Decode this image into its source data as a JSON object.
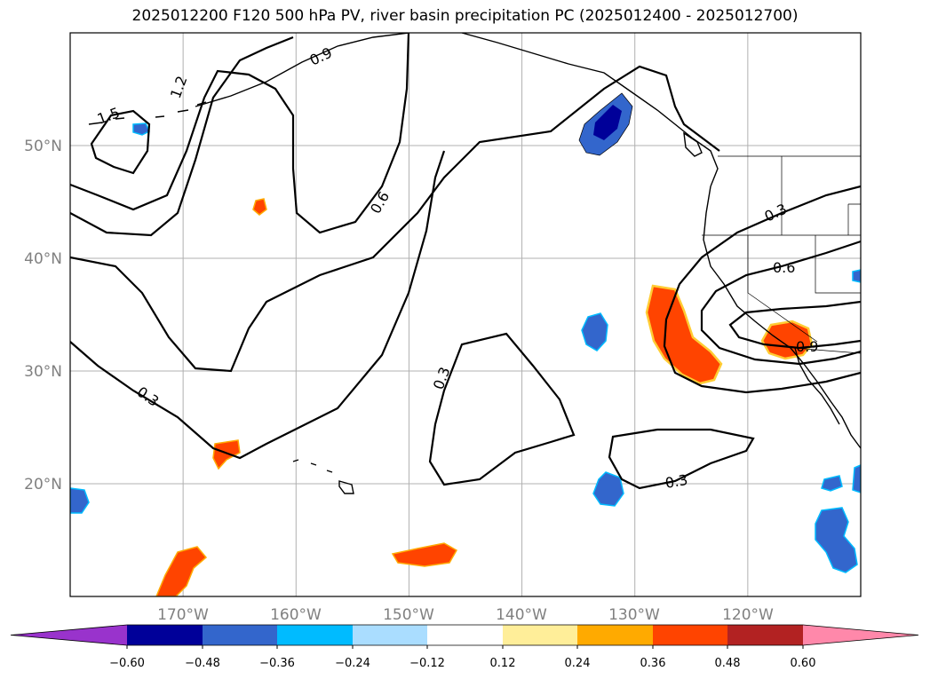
{
  "title": "2025012200 F120 500 hPa PV, river basin precipitation PC (2025012400 - 2025012700)",
  "map": {
    "lon_range": [
      -180,
      -110
    ],
    "lat_range": [
      10,
      60
    ],
    "lon_ticks": [
      {
        "value": -170,
        "label": "170°W"
      },
      {
        "value": -160,
        "label": "160°W"
      },
      {
        "value": -150,
        "label": "150°W"
      },
      {
        "value": -140,
        "label": "140°W"
      },
      {
        "value": -130,
        "label": "130°W"
      },
      {
        "value": -120,
        "label": "120°W"
      }
    ],
    "lat_ticks": [
      {
        "value": 50,
        "label": "50°N"
      },
      {
        "value": 40,
        "label": "40°N"
      },
      {
        "value": 30,
        "label": "30°N"
      },
      {
        "value": 20,
        "label": "20°N"
      }
    ],
    "grid": true,
    "contour_labels": [
      "1.5",
      "1.2",
      "0.9",
      "0.6",
      "0.3",
      "0.3",
      "0.3",
      "0.3",
      "0.6",
      "0.9"
    ]
  },
  "colorbar": {
    "ticks": [
      "−0.60",
      "−0.48",
      "−0.36",
      "−0.24",
      "−0.12",
      "0.12",
      "0.24",
      "0.36",
      "0.48",
      "0.60"
    ],
    "colors": [
      "#9933cc",
      "#000099",
      "#3366cc",
      "#00bbff",
      "#aaddff",
      "#ffffff",
      "#ffee99",
      "#ffaa00",
      "#ff4400",
      "#b22222",
      "#ff88aa"
    ],
    "extend": "both"
  },
  "colors": {
    "neg_strong": "#000099",
    "neg_mid": "#3366cc",
    "neg_light": "#00bbff",
    "pos_light": "#ffee99",
    "pos_mid": "#ffaa00",
    "pos_strong": "#ff4400"
  }
}
